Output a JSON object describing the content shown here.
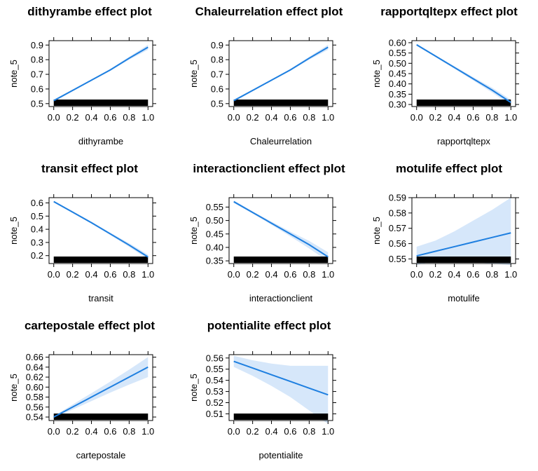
{
  "chart_data": [
    {
      "type": "line",
      "title": "dithyrambe effect plot",
      "xlabel": "dithyrambe",
      "ylabel": "note_5",
      "xlim": [
        -0.05,
        1.05
      ],
      "ylim": [
        0.48,
        0.93
      ],
      "xticks": [
        "0.0",
        "0.2",
        "0.4",
        "0.6",
        "0.8",
        "1.0"
      ],
      "yticks": [
        "0.5",
        "0.6",
        "0.7",
        "0.8",
        "0.9"
      ],
      "series": [
        {
          "x": [
            0.0,
            0.2,
            0.4,
            0.6,
            0.8,
            1.0
          ],
          "y": [
            0.52,
            0.59,
            0.66,
            0.73,
            0.81,
            0.885
          ],
          "lower": [
            0.512,
            0.584,
            0.655,
            0.724,
            0.8,
            0.868
          ],
          "upper": [
            0.528,
            0.596,
            0.665,
            0.736,
            0.82,
            0.902
          ]
        }
      ],
      "colors": {
        "line": "#1e7fe0",
        "band": "#d6e7fa",
        "rug": "#000000"
      }
    },
    {
      "type": "line",
      "title": "Chaleurrelation effect plot",
      "xlabel": "Chaleurrelation",
      "ylabel": "note_5",
      "xlim": [
        -0.05,
        1.05
      ],
      "ylim": [
        0.48,
        0.93
      ],
      "xticks": [
        "0.0",
        "0.2",
        "0.4",
        "0.6",
        "0.8",
        "1.0"
      ],
      "yticks": [
        "0.5",
        "0.6",
        "0.7",
        "0.8",
        "0.9"
      ],
      "series": [
        {
          "x": [
            0.0,
            0.2,
            0.4,
            0.6,
            0.8,
            1.0
          ],
          "y": [
            0.52,
            0.59,
            0.66,
            0.73,
            0.81,
            0.885
          ],
          "lower": [
            0.512,
            0.584,
            0.655,
            0.724,
            0.8,
            0.868
          ],
          "upper": [
            0.528,
            0.596,
            0.665,
            0.736,
            0.82,
            0.902
          ]
        }
      ],
      "colors": {
        "line": "#1e7fe0",
        "band": "#d6e7fa",
        "rug": "#000000"
      }
    },
    {
      "type": "line",
      "title": "rapportqltepx effect plot",
      "xlabel": "rapportqltepx",
      "ylabel": "note_5",
      "xlim": [
        -0.05,
        1.05
      ],
      "ylim": [
        0.29,
        0.61
      ],
      "xticks": [
        "0.0",
        "0.2",
        "0.4",
        "0.6",
        "0.8",
        "1.0"
      ],
      "yticks": [
        "0.30",
        "0.35",
        "0.40",
        "0.45",
        "0.50",
        "0.55",
        "0.60"
      ],
      "series": [
        {
          "x": [
            0.0,
            0.2,
            0.4,
            0.6,
            0.8,
            1.0
          ],
          "y": [
            0.59,
            0.535,
            0.48,
            0.425,
            0.37,
            0.31
          ],
          "lower": [
            0.585,
            0.531,
            0.474,
            0.417,
            0.358,
            0.297
          ],
          "upper": [
            0.595,
            0.539,
            0.486,
            0.433,
            0.382,
            0.323
          ]
        }
      ],
      "colors": {
        "line": "#1e7fe0",
        "band": "#d6e7fa",
        "rug": "#000000"
      }
    },
    {
      "type": "line",
      "title": "transit effect plot",
      "xlabel": "transit",
      "ylabel": "note_5",
      "xlim": [
        -0.05,
        1.05
      ],
      "ylim": [
        0.14,
        0.64
      ],
      "xticks": [
        "0.0",
        "0.2",
        "0.4",
        "0.6",
        "0.8",
        "1.0"
      ],
      "yticks": [
        "0.2",
        "0.3",
        "0.4",
        "0.5",
        "0.6"
      ],
      "series": [
        {
          "x": [
            0.0,
            0.2,
            0.4,
            0.6,
            0.8,
            1.0
          ],
          "y": [
            0.61,
            0.53,
            0.45,
            0.365,
            0.28,
            0.19
          ],
          "lower": [
            0.603,
            0.524,
            0.443,
            0.356,
            0.266,
            0.172
          ],
          "upper": [
            0.617,
            0.536,
            0.457,
            0.374,
            0.294,
            0.208
          ]
        }
      ],
      "colors": {
        "line": "#1e7fe0",
        "band": "#d6e7fa",
        "rug": "#000000"
      }
    },
    {
      "type": "line",
      "title": "interactionclient effect plot",
      "xlabel": "interactionclient",
      "ylabel": "note_5",
      "xlim": [
        -0.05,
        1.05
      ],
      "ylim": [
        0.34,
        0.585
      ],
      "xticks": [
        "0.0",
        "0.2",
        "0.4",
        "0.6",
        "0.8",
        "1.0"
      ],
      "yticks": [
        "0.35",
        "0.40",
        "0.45",
        "0.50",
        "0.55"
      ],
      "series": [
        {
          "x": [
            0.0,
            0.2,
            0.4,
            0.6,
            0.8,
            1.0
          ],
          "y": [
            0.57,
            0.53,
            0.49,
            0.45,
            0.41,
            0.365
          ],
          "lower": [
            0.565,
            0.526,
            0.484,
            0.441,
            0.396,
            0.348
          ],
          "upper": [
            0.575,
            0.534,
            0.496,
            0.459,
            0.424,
            0.382
          ]
        }
      ],
      "colors": {
        "line": "#1e7fe0",
        "band": "#d6e7fa",
        "rug": "#000000"
      }
    },
    {
      "type": "line",
      "title": "motulife effect plot",
      "xlabel": "motulife",
      "ylabel": "note_5",
      "xlim": [
        -0.05,
        1.05
      ],
      "ylim": [
        0.547,
        0.59
      ],
      "xticks": [
        "0.0",
        "0.2",
        "0.4",
        "0.6",
        "0.8",
        "1.0"
      ],
      "yticks": [
        "0.55",
        "0.56",
        "0.57",
        "0.58",
        "0.59"
      ],
      "series": [
        {
          "x": [
            0.0,
            0.2,
            0.4,
            0.6,
            0.8,
            1.0
          ],
          "y": [
            0.552,
            0.555,
            0.558,
            0.561,
            0.564,
            0.567
          ],
          "lower": [
            0.546,
            0.549,
            0.549,
            0.548,
            0.547,
            0.546
          ],
          "upper": [
            0.558,
            0.562,
            0.568,
            0.575,
            0.582,
            0.59
          ]
        }
      ],
      "colors": {
        "line": "#1e7fe0",
        "band": "#d6e7fa",
        "rug": "#000000"
      }
    },
    {
      "type": "line",
      "title": "cartepostale effect plot",
      "xlabel": "cartepostale",
      "ylabel": "note_5",
      "xlim": [
        -0.05,
        1.05
      ],
      "ylim": [
        0.533,
        0.665
      ],
      "xticks": [
        "0.0",
        "0.2",
        "0.4",
        "0.6",
        "0.8",
        "1.0"
      ],
      "yticks": [
        "0.54",
        "0.56",
        "0.58",
        "0.60",
        "0.62",
        "0.64",
        "0.66"
      ],
      "series": [
        {
          "x": [
            0.0,
            0.2,
            0.4,
            0.6,
            0.8,
            1.0
          ],
          "y": [
            0.54,
            0.56,
            0.58,
            0.6,
            0.62,
            0.64
          ],
          "lower": [
            0.538,
            0.555,
            0.572,
            0.589,
            0.605,
            0.62
          ],
          "upper": [
            0.542,
            0.565,
            0.588,
            0.611,
            0.635,
            0.66
          ]
        }
      ],
      "colors": {
        "line": "#1e7fe0",
        "band": "#d6e7fa",
        "rug": "#000000"
      }
    },
    {
      "type": "line",
      "title": "potentialite effect plot",
      "xlabel": "potentialite",
      "ylabel": "note_5",
      "xlim": [
        -0.05,
        1.05
      ],
      "ylim": [
        0.504,
        0.563
      ],
      "xticks": [
        "0.0",
        "0.2",
        "0.4",
        "0.6",
        "0.8",
        "1.0"
      ],
      "yticks": [
        "0.51",
        "0.52",
        "0.53",
        "0.54",
        "0.55",
        "0.56"
      ],
      "series": [
        {
          "x": [
            0.0,
            0.2,
            0.4,
            0.6,
            0.8,
            1.0
          ],
          "y": [
            0.557,
            0.551,
            0.545,
            0.539,
            0.533,
            0.527
          ],
          "lower": [
            0.552,
            0.544,
            0.535,
            0.525,
            0.513,
            0.501
          ],
          "upper": [
            0.562,
            0.558,
            0.555,
            0.553,
            0.553,
            0.553
          ]
        }
      ],
      "colors": {
        "line": "#1e7fe0",
        "band": "#d6e7fa",
        "rug": "#000000"
      }
    }
  ]
}
